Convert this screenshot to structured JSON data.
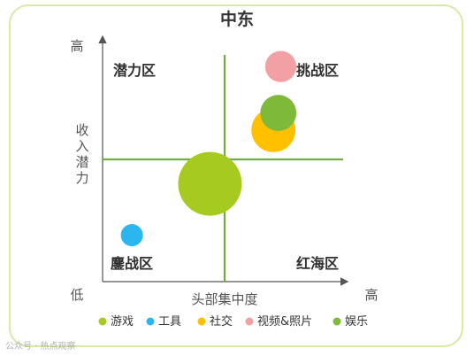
{
  "chart_data": {
    "type": "scatter",
    "title": "中东",
    "xlabel": "头部集中度",
    "ylabel": "收入潜力",
    "x_low_label": "低",
    "x_high_label": "高",
    "y_high_label": "高",
    "xlim": [
      0,
      100
    ],
    "ylim": [
      0,
      100
    ],
    "divider": {
      "x": 50,
      "y": 50
    },
    "quadrants": {
      "top_left": "潜力区",
      "top_right": "挑战区",
      "bottom_left": "鏖战区",
      "bottom_right": "红海区"
    },
    "series": [
      {
        "name": "游戏",
        "color": "#a6cb20",
        "points": [
          {
            "x": 44,
            "y": 40,
            "size": 100
          }
        ]
      },
      {
        "name": "工具",
        "color": "#2bb6f0",
        "points": [
          {
            "x": 12,
            "y": 19,
            "size": 12
          }
        ]
      },
      {
        "name": "社交",
        "color": "#ffc000",
        "points": [
          {
            "x": 70,
            "y": 62,
            "size": 48
          }
        ]
      },
      {
        "name": "视频&照片",
        "color": "#f2a0a4",
        "points": [
          {
            "x": 73,
            "y": 88,
            "size": 24
          }
        ]
      },
      {
        "name": "娱乐",
        "color": "#7fb93a",
        "points": [
          {
            "x": 72,
            "y": 69,
            "size": 32
          }
        ]
      }
    ],
    "grid": false,
    "legend_position": "bottom"
  },
  "watermark": "公众号 · 热点观察"
}
